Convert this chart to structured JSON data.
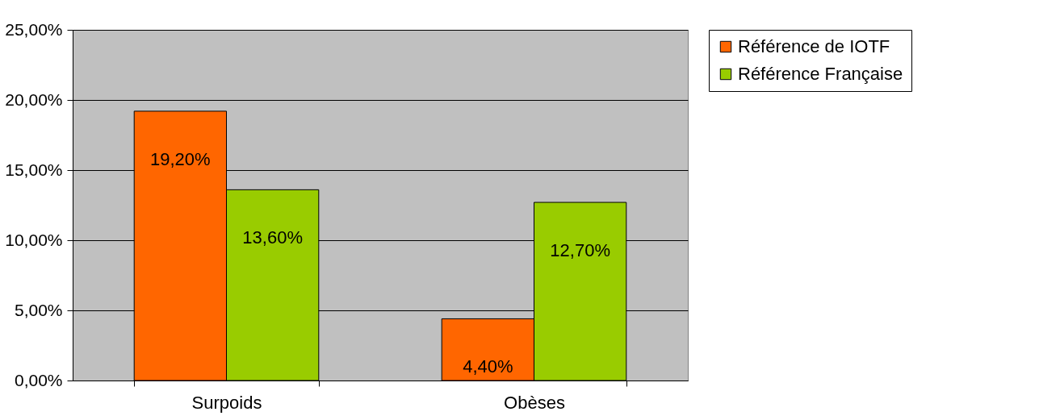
{
  "chart_data": {
    "type": "bar",
    "categories": [
      "Surpoids",
      "Obèses"
    ],
    "series": [
      {
        "name": "Référence de IOTF",
        "color": "#ff6600",
        "values": [
          19.2,
          4.4
        ],
        "value_labels": [
          "19,20%",
          "4,40%"
        ]
      },
      {
        "name": "Référence Française",
        "color": "#99cc00",
        "values": [
          13.6,
          12.7
        ],
        "value_labels": [
          "13,60%",
          "12,70%"
        ]
      }
    ],
    "ylim": [
      0,
      25
    ],
    "yticks": [
      {
        "value": 0,
        "label": "0,00%"
      },
      {
        "value": 5,
        "label": "5,00%"
      },
      {
        "value": 10,
        "label": "10,00%"
      },
      {
        "value": 15,
        "label": "15,00%"
      },
      {
        "value": 20,
        "label": "20,00%"
      },
      {
        "value": 25,
        "label": "25,00%"
      }
    ],
    "grid": "y",
    "legend": "right"
  }
}
